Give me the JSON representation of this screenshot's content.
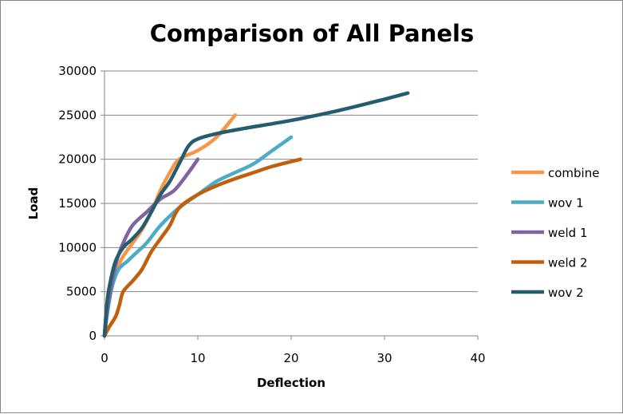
{
  "chart_data": {
    "type": "line",
    "title": "Comparison of All Panels",
    "xlabel": "Deflection",
    "ylabel": "Load",
    "xlim": [
      0,
      40
    ],
    "ylim": [
      0,
      30000
    ],
    "x_ticks": [
      "0",
      "10",
      "20",
      "30",
      "40"
    ],
    "y_ticks": [
      "0",
      "5000",
      "10000",
      "15000",
      "20000",
      "25000",
      "30000"
    ],
    "grid": "horizontal",
    "legend_position": "right",
    "series": [
      {
        "name": "combine",
        "color": "#F79646",
        "points": [
          [
            0,
            0
          ],
          [
            0.2,
            3000
          ],
          [
            0.5,
            5500
          ],
          [
            1,
            7000
          ],
          [
            1.5,
            8000
          ],
          [
            2,
            9000
          ],
          [
            3,
            10500
          ],
          [
            4,
            12000
          ],
          [
            5,
            14000
          ],
          [
            6,
            16500
          ],
          [
            7,
            18500
          ],
          [
            8,
            20000
          ],
          [
            10,
            21000
          ],
          [
            12,
            22500
          ],
          [
            14,
            25000
          ]
        ]
      },
      {
        "name": "wov 1",
        "color": "#4BACC6",
        "points": [
          [
            0,
            0
          ],
          [
            0.3,
            2500
          ],
          [
            0.8,
            5500
          ],
          [
            1.5,
            7500
          ],
          [
            2.5,
            8500
          ],
          [
            3.5,
            9500
          ],
          [
            4.5,
            10500
          ],
          [
            6,
            12500
          ],
          [
            8,
            14500
          ],
          [
            10,
            16000
          ],
          [
            12,
            17500
          ],
          [
            14,
            18500
          ],
          [
            16,
            19500
          ],
          [
            18,
            21000
          ],
          [
            20,
            22500
          ]
        ]
      },
      {
        "name": "weld 1",
        "color": "#8064A2",
        "points": [
          [
            0,
            0
          ],
          [
            0.3,
            3000
          ],
          [
            0.8,
            6000
          ],
          [
            1.3,
            8500
          ],
          [
            2,
            10500
          ],
          [
            3,
            12500
          ],
          [
            4.5,
            14000
          ],
          [
            6,
            15500
          ],
          [
            7.5,
            16500
          ],
          [
            9,
            18500
          ],
          [
            10,
            20000
          ]
        ]
      },
      {
        "name": "weld 2",
        "color": "#C0600F",
        "points": [
          [
            0,
            0
          ],
          [
            0.5,
            1000
          ],
          [
            1.2,
            2200
          ],
          [
            1.6,
            3500
          ],
          [
            2,
            5000
          ],
          [
            3,
            6200
          ],
          [
            4,
            7500
          ],
          [
            5,
            9500
          ],
          [
            6,
            11000
          ],
          [
            7,
            12500
          ],
          [
            8,
            14500
          ],
          [
            10,
            16000
          ],
          [
            12,
            17000
          ],
          [
            14,
            17800
          ],
          [
            16,
            18500
          ],
          [
            18,
            19200
          ],
          [
            21,
            20000
          ]
        ]
      },
      {
        "name": "wov 2",
        "color": "#245E6E",
        "points": [
          [
            0,
            0
          ],
          [
            0.3,
            4000
          ],
          [
            0.7,
            6500
          ],
          [
            1.2,
            8500
          ],
          [
            2,
            10000
          ],
          [
            3,
            11000
          ],
          [
            4,
            12200
          ],
          [
            5,
            14000
          ],
          [
            6,
            16000
          ],
          [
            7,
            17500
          ],
          [
            8,
            19500
          ],
          [
            9,
            21500
          ],
          [
            10,
            22300
          ],
          [
            12,
            22900
          ],
          [
            15,
            23500
          ],
          [
            20,
            24400
          ],
          [
            25,
            25500
          ],
          [
            30,
            26800
          ],
          [
            32.5,
            27500
          ]
        ]
      }
    ]
  }
}
